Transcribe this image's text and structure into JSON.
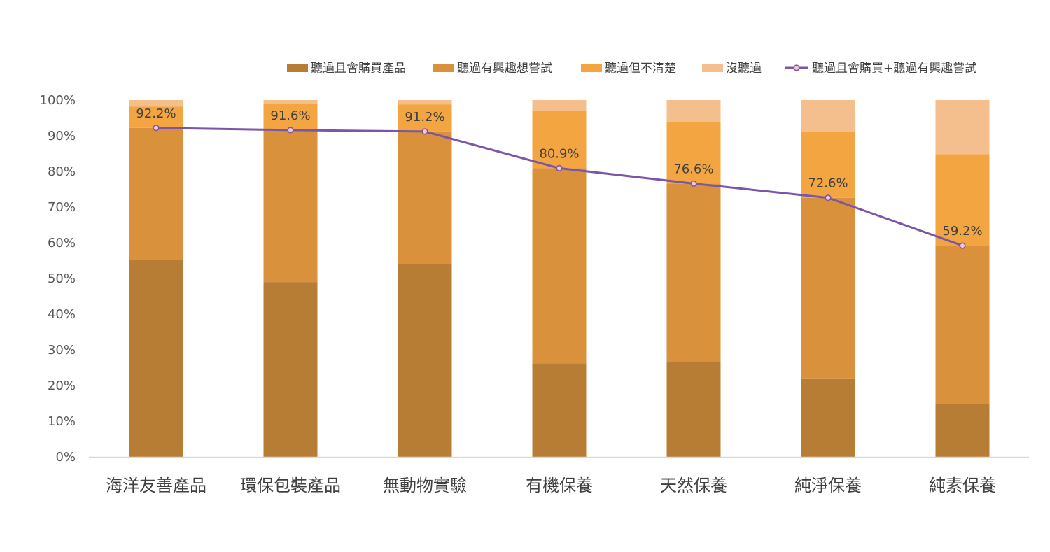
{
  "chart_data": {
    "type": "bar",
    "stacked": true,
    "categories": [
      "海洋友善產品",
      "環保包裝產品",
      "無動物實驗",
      "有機保養",
      "天然保養",
      "純淨保養",
      "純素保養"
    ],
    "series": [
      {
        "name": "聽過且會購買產品",
        "color": "#B87D34",
        "values": [
          55.2,
          49.0,
          54.0,
          26.2,
          26.8,
          21.8,
          14.8
        ]
      },
      {
        "name": "聽過有興趣想嘗試",
        "color": "#D9913C",
        "values": [
          37.0,
          42.6,
          37.2,
          54.7,
          49.8,
          50.8,
          44.4
        ]
      },
      {
        "name": "聽過但不清楚",
        "color": "#F2A541",
        "values": [
          6.0,
          7.4,
          7.6,
          16.0,
          17.3,
          18.4,
          25.6
        ]
      },
      {
        "name": "沒聽過",
        "color": "#F5BE8D",
        "values": [
          1.8,
          1.0,
          1.2,
          3.1,
          6.1,
          9.0,
          15.2
        ]
      }
    ],
    "line": {
      "name": "聽過且會購買+聽過有興趣嘗試",
      "color": "#7B55A8",
      "values": [
        92.2,
        91.6,
        91.2,
        80.9,
        76.6,
        72.6,
        59.2
      ],
      "labels": [
        "92.2%",
        "91.6%",
        "91.2%",
        "80.9%",
        "76.6%",
        "72.6%",
        "59.2%"
      ]
    },
    "ylim": [
      0,
      100
    ],
    "yticks": [
      "0%",
      "10%",
      "20%",
      "30%",
      "40%",
      "50%",
      "60%",
      "70%",
      "80%",
      "90%",
      "100%"
    ],
    "legend_position": "top-right",
    "grid": false,
    "title": "",
    "xlabel": "",
    "ylabel": ""
  }
}
